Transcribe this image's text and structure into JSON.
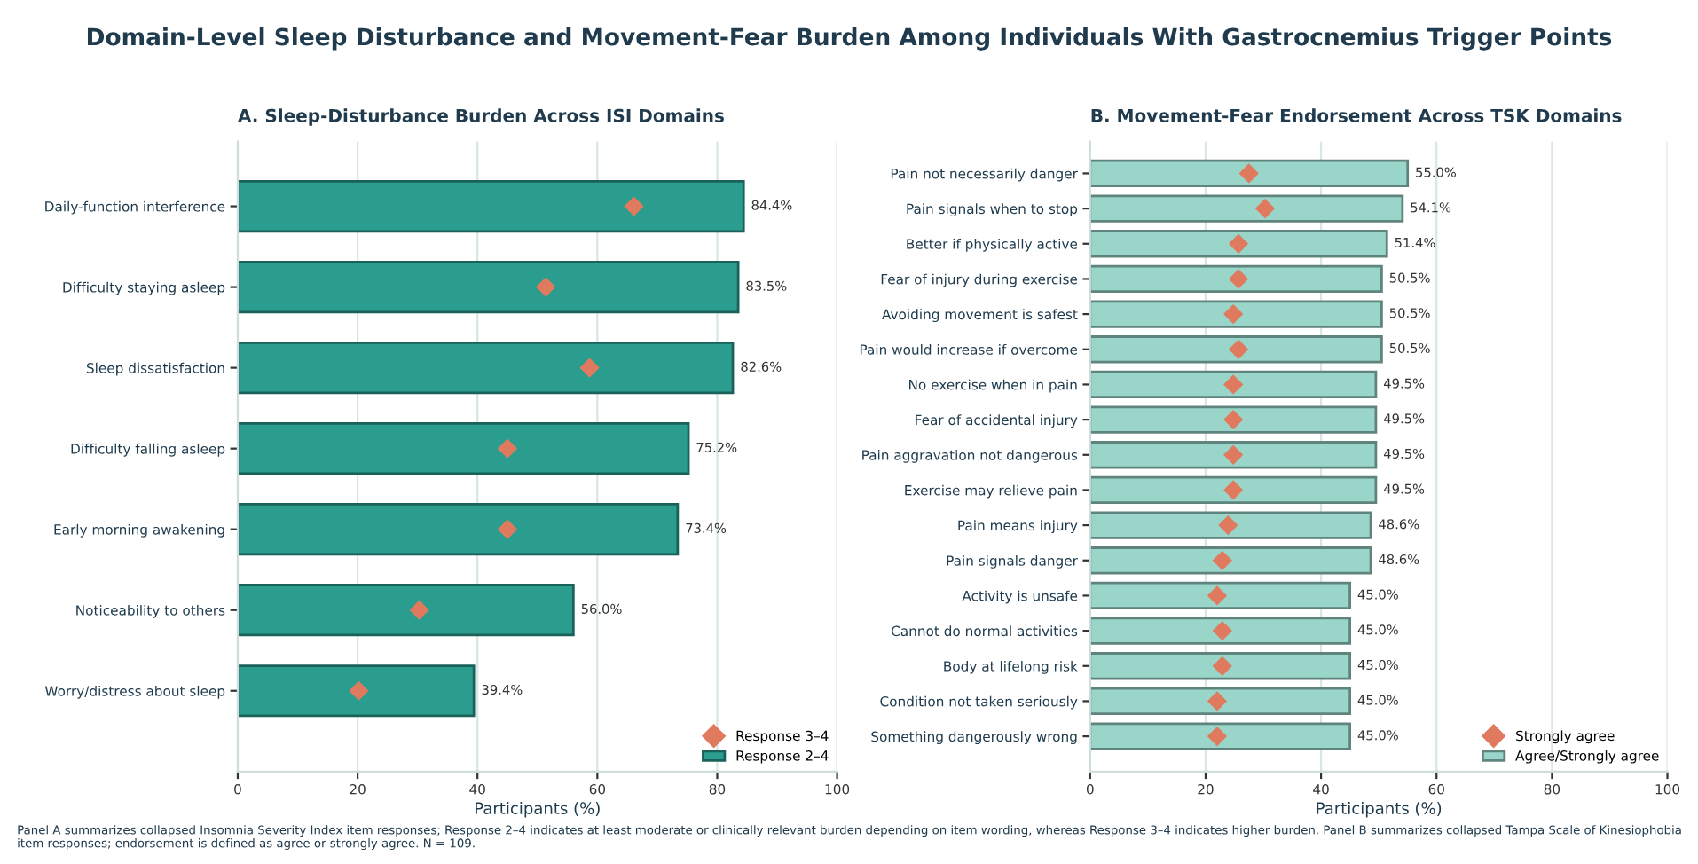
{
  "chart_data": [
    {
      "type": "other",
      "title": "Domain-Level Sleep Disturbance and Movement-Fear Burden Among Individuals With Gastrocnemius Trigger Points",
      "annotations": [
        "Panel A summarizes collapsed Insomnia Severity Index item responses; Response 2–4 indicates at least moderate or clinically relevant burden depending on item wording, whereas Response 3–4 indicates higher burden. Panel B summarizes collapsed Tampa Scale of Kinesiophobia item responses; endorsement is defined as agree or strongly agree. N = 109."
      ]
    },
    {
      "type": "bar",
      "orientation": "horizontal",
      "title": "A. Sleep-Disturbance Burden Across ISI Domains",
      "xlabel": "Participants (%)",
      "categories": [
        "Daily-function interference",
        "Difficulty staying asleep",
        "Sleep dissatisfaction",
        "Difficulty falling asleep",
        "Early morning awakening",
        "Noticeability to others",
        "Worry/distress about sleep"
      ],
      "series": [
        {
          "name": "Response 2–4",
          "type": "bar",
          "color": "#2a9d8f",
          "values": [
            84.4,
            83.5,
            82.6,
            75.2,
            73.4,
            56.0,
            39.4
          ],
          "value_labels": [
            "84.4%",
            "83.5%",
            "82.6%",
            "75.2%",
            "73.4%",
            "56.0%",
            "39.4%"
          ]
        },
        {
          "name": "Response 3–4",
          "type": "scatter",
          "color": "#e07a5f",
          "marker": "diamond",
          "values": [
            66.1,
            51.4,
            58.7,
            45.0,
            45.0,
            30.3,
            20.2
          ]
        }
      ],
      "xlim": [
        0,
        100
      ],
      "xticks": [
        0,
        20,
        40,
        60,
        80,
        100
      ],
      "grid": "x",
      "legend": "bottom right"
    },
    {
      "type": "bar",
      "orientation": "horizontal",
      "title": "B. Movement-Fear Endorsement Across TSK Domains",
      "xlabel": "Participants (%)",
      "categories": [
        "Pain not necessarily danger",
        "Pain signals when to stop",
        "Better if physically active",
        "Fear of injury during exercise",
        "Avoiding movement is safest",
        "Pain would increase if overcome",
        "No exercise when in pain",
        "Fear of accidental injury",
        "Pain aggravation not dangerous",
        "Exercise may relieve pain",
        "Pain means injury",
        "Pain signals danger",
        "Activity is unsafe",
        "Cannot do normal activities",
        "Body at lifelong risk",
        "Condition not taken seriously",
        "Something dangerously wrong"
      ],
      "series": [
        {
          "name": "Agree/Strongly agree",
          "type": "bar",
          "color": "#99d5c9",
          "values": [
            55.0,
            54.1,
            51.4,
            50.5,
            50.5,
            50.5,
            49.5,
            49.5,
            49.5,
            49.5,
            48.6,
            48.6,
            45.0,
            45.0,
            45.0,
            45.0,
            45.0
          ],
          "value_labels": [
            "55.0%",
            "54.1%",
            "51.4%",
            "50.5%",
            "50.5%",
            "50.5%",
            "49.5%",
            "49.5%",
            "49.5%",
            "49.5%",
            "48.6%",
            "48.6%",
            "45.0%",
            "45.0%",
            "45.0%",
            "45.0%",
            "45.0%"
          ]
        },
        {
          "name": "Strongly agree",
          "type": "scatter",
          "color": "#e07a5f",
          "marker": "diamond",
          "values": [
            27.5,
            30.3,
            25.7,
            25.7,
            24.8,
            25.7,
            24.8,
            24.8,
            24.8,
            24.8,
            23.9,
            22.9,
            22.0,
            22.9,
            22.9,
            22.0,
            22.0
          ]
        }
      ],
      "xlim": [
        0,
        100
      ],
      "xticks": [
        0,
        20,
        40,
        60,
        80,
        100
      ],
      "grid": "x",
      "legend": "bottom right"
    }
  ]
}
